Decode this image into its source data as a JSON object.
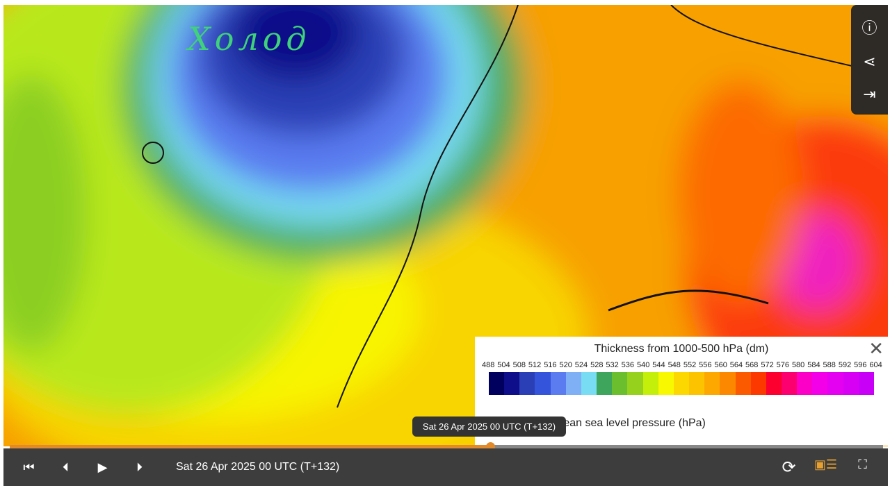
{
  "annotation": {
    "handwriting": "Холод"
  },
  "side_buttons": [
    {
      "icon": "info-icon",
      "glyph": "ⓘ"
    },
    {
      "icon": "share-icon",
      "glyph": "⋖"
    },
    {
      "icon": "export-icon",
      "glyph": "⇥"
    }
  ],
  "legend": {
    "title": "Thickness from 1000-500 hPa (dm)",
    "ticks": [
      "488",
      "504",
      "508",
      "512",
      "516",
      "520",
      "524",
      "528",
      "532",
      "536",
      "540",
      "544",
      "548",
      "552",
      "556",
      "560",
      "564",
      "568",
      "572",
      "576",
      "580",
      "584",
      "588",
      "592",
      "596",
      "604"
    ],
    "colors": [
      "#02005e",
      "#0e0e8a",
      "#2a3fb5",
      "#3354db",
      "#5a7cf0",
      "#7fb0f5",
      "#78dcf2",
      "#3da65c",
      "#6bbf2e",
      "#96d11e",
      "#c4ef0a",
      "#f8f800",
      "#fcd800",
      "#fcc400",
      "#fca800",
      "#fc8800",
      "#fc5a00",
      "#fc3a00",
      "#fc0030",
      "#fc0070",
      "#fc00c8",
      "#f400e8",
      "#e400f0",
      "#d800f4",
      "#c800f8"
    ],
    "mslp_label": "Mean sea level pressure (hPa)",
    "close_glyph": "✕"
  },
  "timeline": {
    "tooltip": "Sat 26 Apr 2025 00 UTC (T+132)",
    "progress": 0.55
  },
  "controls": {
    "first": "⏮",
    "prev": "⏴",
    "play": "▶",
    "next": "⏵",
    "date": "Sat 26 Apr 2025 00 UTC (T+132)",
    "loop": "⟳",
    "legend_toggle": "▣☰",
    "fullscreen": "⛶"
  }
}
